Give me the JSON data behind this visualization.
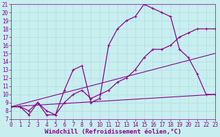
{
  "xlabel": "Windchill (Refroidissement éolien,°C)",
  "xlim": [
    0,
    23
  ],
  "ylim": [
    7,
    21
  ],
  "xticks": [
    0,
    1,
    2,
    3,
    4,
    5,
    6,
    7,
    8,
    9,
    10,
    11,
    12,
    13,
    14,
    15,
    16,
    17,
    18,
    19,
    20,
    21,
    22,
    23
  ],
  "yticks": [
    7,
    8,
    9,
    10,
    11,
    12,
    13,
    14,
    15,
    16,
    17,
    18,
    19,
    20,
    21
  ],
  "bg_color": "#c8eef0",
  "grid_color": "#b0dde0",
  "line_color": "#880088",
  "curve1_x": [
    0,
    1,
    2,
    3,
    4,
    5,
    6,
    7,
    8,
    9,
    10,
    11,
    12,
    13,
    14,
    15,
    16,
    17,
    18,
    19,
    20,
    21,
    22,
    23
  ],
  "curve1_y": [
    8.5,
    8.5,
    7.5,
    9.0,
    7.5,
    7.5,
    10.5,
    13.0,
    13.5,
    9.0,
    9.5,
    16.0,
    18.0,
    19.0,
    19.5,
    21.0,
    20.5,
    20.0,
    19.5,
    15.5,
    14.5,
    12.5,
    10.0,
    10.0
  ],
  "curve2_x": [
    0,
    1,
    2,
    3,
    4,
    5,
    6,
    7,
    8,
    9,
    10,
    11,
    12,
    13,
    14,
    15,
    16,
    17,
    18,
    19,
    20,
    21,
    22,
    23
  ],
  "curve2_y": [
    8.5,
    8.5,
    8.0,
    9.0,
    8.0,
    7.5,
    9.0,
    10.0,
    10.5,
    9.5,
    10.0,
    10.5,
    11.5,
    12.0,
    13.0,
    14.5,
    15.5,
    15.5,
    16.0,
    17.0,
    17.5,
    18.0,
    18.0,
    18.0
  ],
  "line1_x": [
    0,
    23
  ],
  "line1_y": [
    8.5,
    10.0
  ],
  "line2_x": [
    0,
    23
  ],
  "line2_y": [
    8.5,
    15.0
  ],
  "font_color": "#880088",
  "tick_fontsize": 5.5,
  "label_fontsize": 6.5
}
